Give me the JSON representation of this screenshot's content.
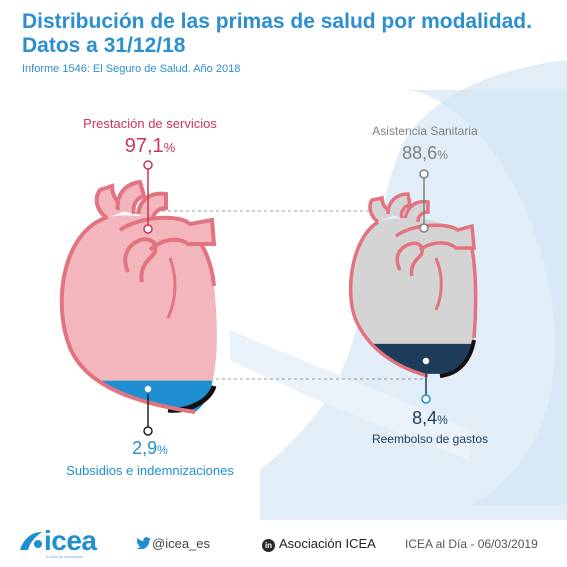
{
  "title": "Distribución de las primas de salud por modalidad. Datos a 31/12/18",
  "subtitle": "Informe 1546: El Seguro de Salud. Año 2018",
  "colors": {
    "title": "#2b8fd0",
    "prestacion": "#c8365a",
    "subsidios": "#1f8fd2",
    "asistencia": "#808080",
    "reembolso": "#1d3c5a",
    "heart_left": "#f4b6bd",
    "heart_right": "#d4d4d4",
    "heart_outline": "#e2737f",
    "background_shape": "#dfedf7"
  },
  "chart_data": [
    {
      "type": "bar",
      "chart": "left heart",
      "categories": [
        "Prestación de servicios",
        "Subsidios e indemnizaciones"
      ],
      "values": [
        97.1,
        2.9
      ],
      "unit": "%"
    },
    {
      "type": "bar",
      "chart": "right heart",
      "categories": [
        "Asistencia Sanitaria",
        "Reembolso de gastos"
      ],
      "values": [
        88.6,
        8.4
      ],
      "unit": "%"
    }
  ],
  "labels": {
    "prestacion": {
      "name": "Prestación de servicios",
      "value": "97,1",
      "unit": "%"
    },
    "subsidios": {
      "name": "Subsidios e indemnizaciones",
      "value": "2,9",
      "unit": "%"
    },
    "asistencia": {
      "name": "Asistencia Sanitaria",
      "value": "88,6",
      "unit": "%"
    },
    "reembolso": {
      "name": "Reembolso de gastos",
      "value": "8,4",
      "unit": "%"
    }
  },
  "footer": {
    "logo": "icea",
    "logo_tagline": "A toda de innovación",
    "twitter": "@icea_es",
    "linkedin": "Asociación ICEA",
    "source": "ICEA al Día - 06/03/2019",
    "icons": [
      "twitter-icon",
      "linkedin-icon",
      "icea-logo-icon"
    ]
  }
}
